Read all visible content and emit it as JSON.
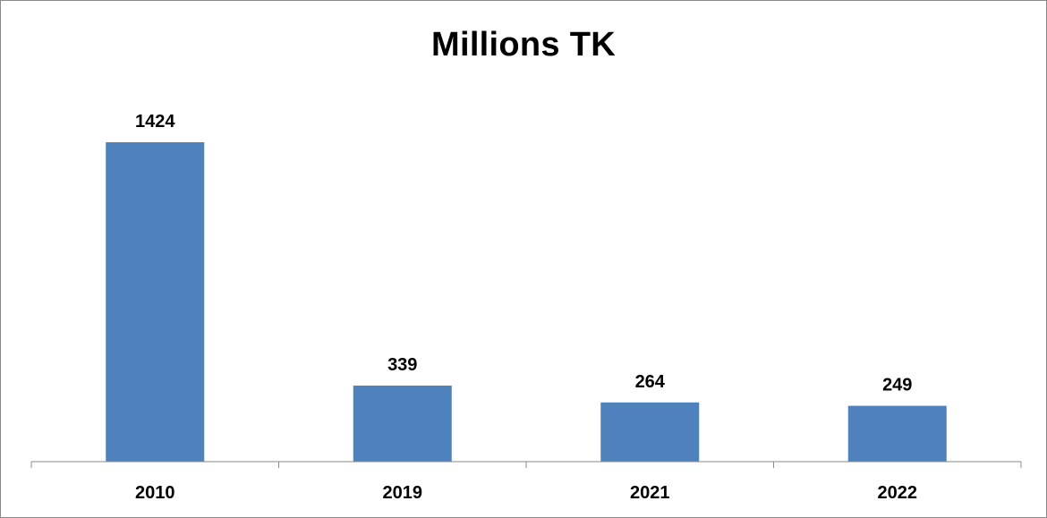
{
  "chart_data": {
    "type": "bar",
    "title": "Millions TK",
    "categories": [
      "2010",
      "2019",
      "2021",
      "2022"
    ],
    "values": [
      1424,
      339,
      264,
      249
    ],
    "xlabel": "",
    "ylabel": "",
    "ylim": [
      0,
      1600
    ],
    "grid": false,
    "legend": "none",
    "bar_color": "#4F81BD",
    "data_labels": [
      "1424",
      "339",
      "264",
      "249"
    ]
  }
}
